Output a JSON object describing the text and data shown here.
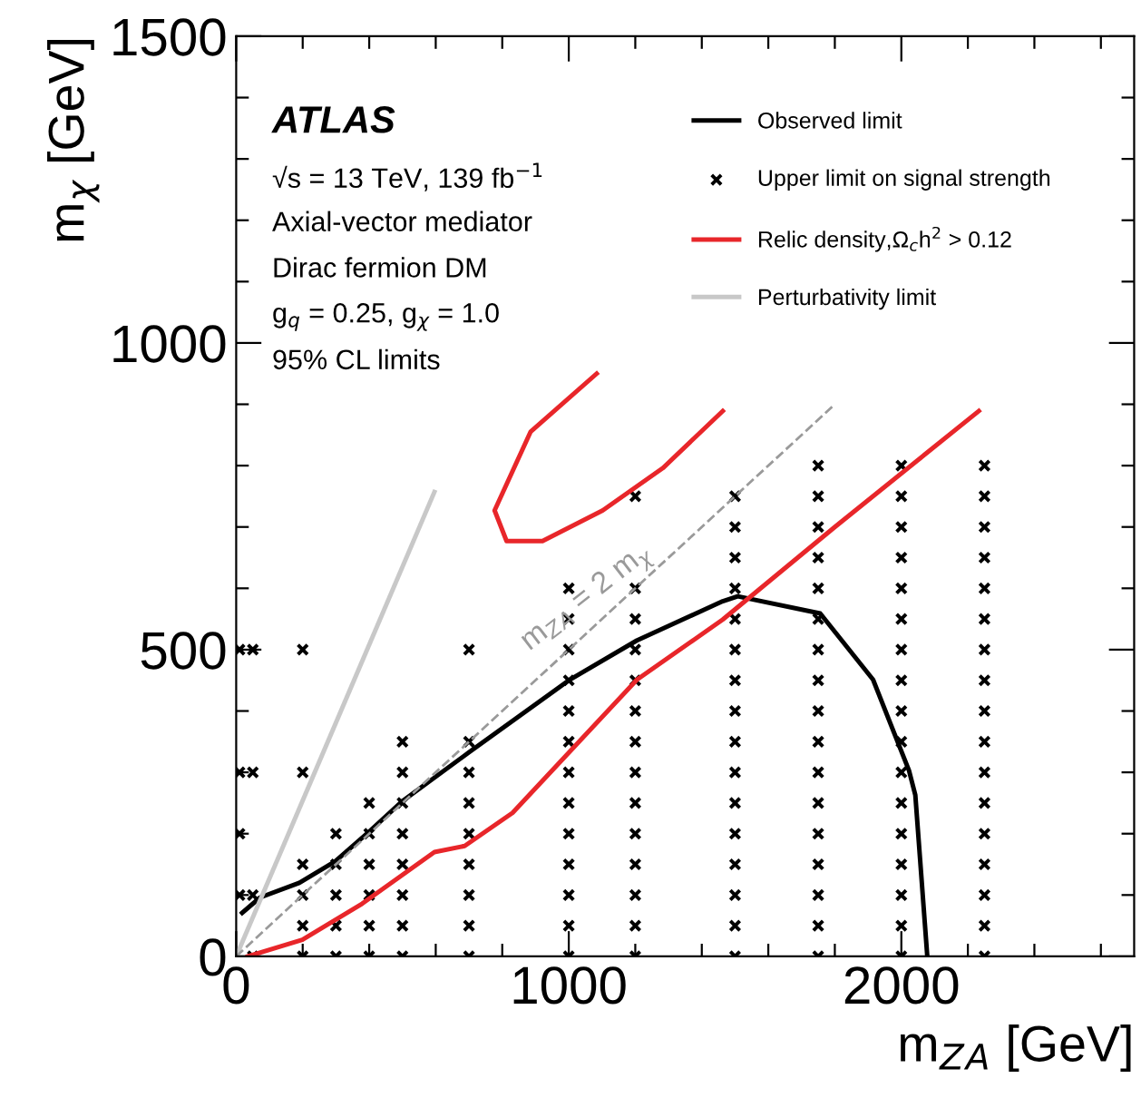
{
  "chart_data": {
    "type": "line",
    "xlabel": "m$_{Z}$$_{A}$ [GeV]",
    "ylabel": "m$_{χ}$ [GeV]",
    "xlim": [
      0,
      2700
    ],
    "ylim": [
      0,
      1500
    ],
    "xticks": [
      0,
      {
        "value": 200,
        "label": null
      },
      {
        "value": 400,
        "label": null
      },
      {
        "value": 600,
        "label": null
      },
      {
        "value": 800,
        "label": null
      },
      1000,
      {
        "value": 1200,
        "label": null
      },
      {
        "value": 1400,
        "label": null
      },
      {
        "value": 1600,
        "label": null
      },
      {
        "value": 1800,
        "label": null
      },
      2000,
      {
        "value": 2200,
        "label": null
      },
      {
        "value": 2400,
        "label": null
      },
      {
        "value": 2600,
        "label": null
      }
    ],
    "yticks": [
      0,
      {
        "value": 100,
        "label": null
      },
      {
        "value": 200,
        "label": null
      },
      {
        "value": 300,
        "label": null
      },
      {
        "value": 400,
        "label": null
      },
      500,
      {
        "value": 600,
        "label": null
      },
      {
        "value": 700,
        "label": null
      },
      {
        "value": 800,
        "label": null
      },
      {
        "value": 900,
        "label": null
      },
      1000,
      {
        "value": 1100,
        "label": null
      },
      {
        "value": 1200,
        "label": null
      },
      {
        "value": 1300,
        "label": null
      },
      {
        "value": 1400,
        "label": null
      },
      1500
    ],
    "grid": false,
    "legend": "top right",
    "annotations": [
      "ATLAS",
      "√s = 13 TeV, 139 fb$^{−1}$",
      "Axial-vector mediator",
      "Dirac fermion DM",
      "g$_{q}$ = 0.25, g$_{χ}$ = 1.0",
      "95% CL limits",
      {
        "text": "m$_{Z}$$_{A}$ = 2 m$_{χ}$",
        "x": 1100,
        "y": 550
      }
    ],
    "series": [
      {
        "name": "Observed limit",
        "color": "#000000",
        "line_style": "solid",
        "marker": "none",
        "x": [
          18,
          72,
          190,
          298,
          401,
          502,
          701,
          1003,
          1205,
          1463,
          1508,
          1756,
          1915,
          2023,
          2042,
          2078
        ],
        "values": [
          71,
          96,
          120,
          155,
          204,
          254,
          333,
          451,
          515,
          579,
          587,
          559,
          451,
          303,
          263,
          0
        ]
      },
      {
        "name": "Upper limit on signal strength",
        "type": "scatter",
        "color": "#000000",
        "marker": "cross",
        "x": [
          10,
          10,
          10,
          10,
          50,
          50,
          50,
          50,
          200,
          200,
          200,
          200,
          200,
          200,
          300,
          300,
          300,
          300,
          300,
          400,
          400,
          400,
          400,
          400,
          400,
          500,
          500,
          500,
          500,
          500,
          500,
          500,
          500,
          700,
          700,
          700,
          700,
          700,
          700,
          700,
          700,
          700,
          1000,
          1000,
          1000,
          1000,
          1000,
          1000,
          1000,
          1000,
          1000,
          1000,
          1000,
          1000,
          1000,
          1200,
          1200,
          1200,
          1200,
          1200,
          1200,
          1200,
          1200,
          1200,
          1200,
          1200,
          1200,
          1200,
          1200,
          1500,
          1500,
          1500,
          1500,
          1500,
          1500,
          1500,
          1500,
          1500,
          1500,
          1500,
          1500,
          1500,
          1500,
          1500,
          1500,
          1750,
          1750,
          1750,
          1750,
          1750,
          1750,
          1750,
          1750,
          1750,
          1750,
          1750,
          1750,
          1750,
          1750,
          1750,
          1750,
          1750,
          2000,
          2000,
          2000,
          2000,
          2000,
          2000,
          2000,
          2000,
          2000,
          2000,
          2000,
          2000,
          2000,
          2000,
          2000,
          2000,
          2000,
          2250,
          2250,
          2250,
          2250,
          2250,
          2250,
          2250,
          2250,
          2250,
          2250,
          2250,
          2250,
          2250,
          2250,
          2250,
          2250,
          2250
        ],
        "values": [
          100,
          200,
          300,
          500,
          0,
          100,
          300,
          500,
          0,
          50,
          100,
          150,
          300,
          500,
          0,
          50,
          100,
          150,
          200,
          0,
          50,
          100,
          150,
          200,
          250,
          0,
          50,
          100,
          150,
          200,
          250,
          300,
          350,
          0,
          50,
          100,
          150,
          200,
          250,
          300,
          350,
          500,
          0,
          50,
          100,
          150,
          200,
          250,
          300,
          350,
          400,
          450,
          500,
          550,
          600,
          0,
          50,
          100,
          150,
          200,
          250,
          300,
          350,
          400,
          450,
          500,
          550,
          600,
          750,
          0,
          50,
          100,
          150,
          200,
          250,
          300,
          350,
          400,
          450,
          500,
          550,
          600,
          650,
          700,
          750,
          0,
          50,
          100,
          150,
          200,
          250,
          300,
          350,
          400,
          450,
          500,
          550,
          600,
          650,
          700,
          750,
          800,
          0,
          50,
          100,
          150,
          200,
          250,
          300,
          350,
          400,
          450,
          500,
          550,
          600,
          650,
          700,
          750,
          800,
          0,
          50,
          100,
          150,
          200,
          250,
          300,
          350,
          400,
          450,
          500,
          550,
          600,
          650,
          700,
          750,
          800
        ]
      },
      {
        "name": "Relic density,Ω$_{c}$h$^{2}$ > 0.12",
        "type": "line",
        "color": "#e8262a",
        "line_style": "solid",
        "marker": "none",
        "x": [
          35,
          199,
          379,
          596,
          687,
          831,
          1205,
          1463,
          1800,
          2233
        ],
        "values": [
          0,
          27,
          86,
          170,
          180,
          234,
          451,
          549,
          700,
          889
        ]
      },
      {
        "type": "line",
        "color": "#e8262a",
        "line_style": "solid",
        "marker": "none",
        "x": [
          1084,
          885,
          777,
          813,
          921,
          1102,
          1283,
          1463
        ],
        "values": [
          950,
          855,
          727,
          677,
          677,
          727,
          796,
          889
        ]
      },
      {
        "name": "Perturbativity limit",
        "type": "line",
        "color": "#c8c8c8",
        "line_style": "solid",
        "marker": "none",
        "x": [
          0,
          596
        ],
        "values": [
          0,
          757
        ]
      },
      {
        "type": "line",
        "color": "#9a9a9a",
        "line_style": "dashed",
        "marker": "none",
        "x": [
          0,
          1800
        ],
        "values": [
          0,
          900
        ]
      }
    ]
  }
}
